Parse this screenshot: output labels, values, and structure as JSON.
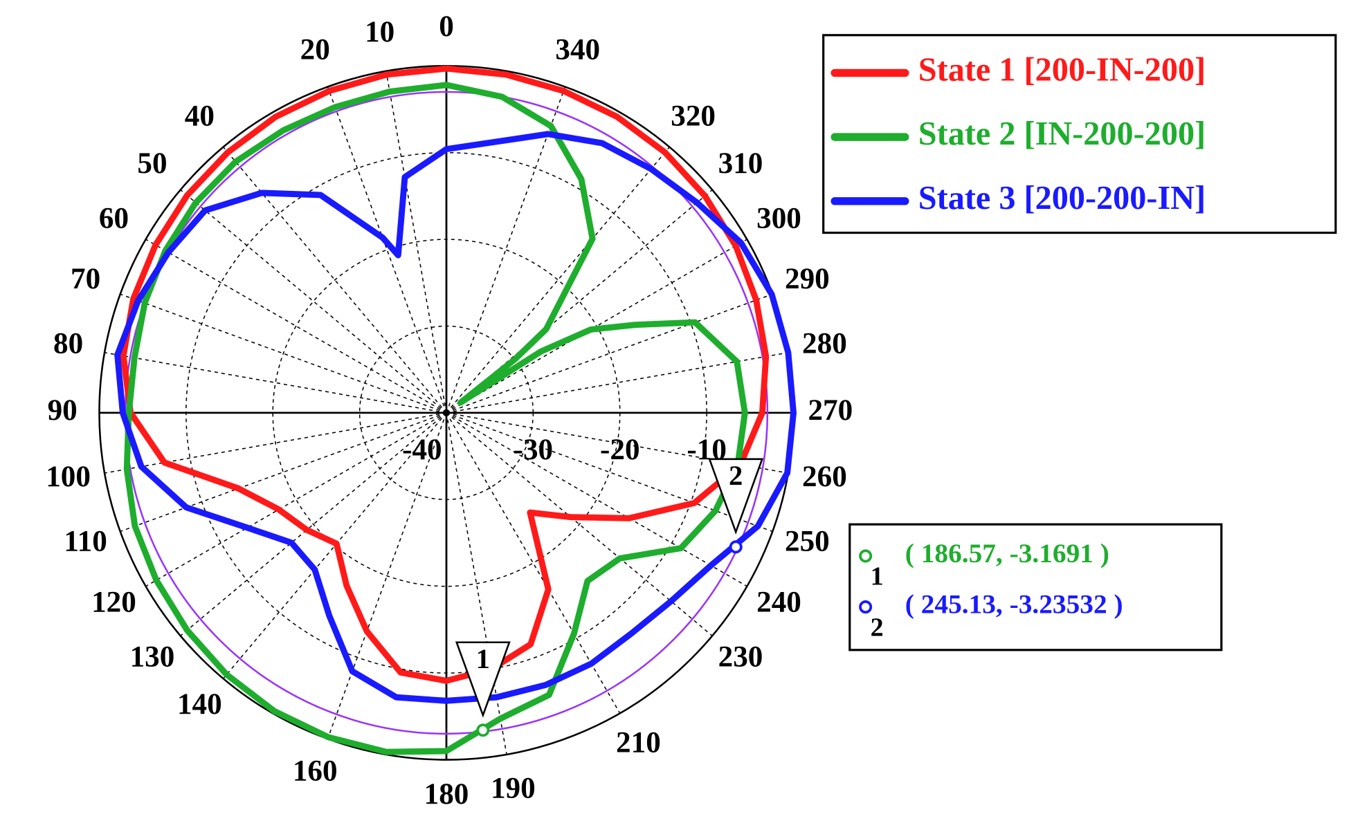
{
  "chart_data": {
    "type": "polar",
    "rlim": [
      -40,
      0
    ],
    "rticks": [
      -40,
      -30,
      -20,
      -10
    ],
    "thetaticks": [
      0,
      10,
      20,
      40,
      50,
      60,
      70,
      80,
      90,
      100,
      110,
      120,
      130,
      140,
      160,
      180,
      190,
      210,
      230,
      240,
      250,
      260,
      270,
      280,
      290,
      300,
      310,
      320,
      340
    ],
    "reference_circle": {
      "r": -3,
      "color": "#9933ff"
    },
    "series": [
      {
        "name": "State 1 [200-IN-200]",
        "color": "#ff1a1a",
        "theta": [
          0,
          10,
          20,
          30,
          40,
          50,
          60,
          70,
          80,
          90,
          100,
          110,
          120,
          130,
          140,
          150,
          160,
          170,
          180,
          190,
          200,
          210,
          220,
          230,
          240,
          250,
          260,
          270,
          280,
          290,
          300,
          310,
          320,
          330,
          340,
          350
        ],
        "r": [
          -0.3,
          -0.4,
          -0.5,
          -0.6,
          -0.8,
          -1,
          -1.3,
          -1.6,
          -2.2,
          -3.6,
          -7,
          -14.5,
          -17.7,
          -19,
          -20.3,
          -17,
          -13.2,
          -9.6,
          -9.1,
          -10,
          -11.6,
          -16.5,
          -25,
          -21.3,
          -15.7,
          -9.6,
          -5.6,
          -3.6,
          -2.6,
          -2,
          -1.5,
          -1.1,
          -0.8,
          -0.6,
          -0.5,
          -0.4
        ]
      },
      {
        "name": "State 2 [IN-200-200]",
        "color": "#1fad2e",
        "theta": [
          0,
          10,
          20,
          30,
          40,
          50,
          60,
          70,
          80,
          90,
          100,
          110,
          120,
          130,
          140,
          150,
          160,
          170,
          180,
          190,
          200,
          210,
          220,
          230,
          240,
          250,
          260,
          270,
          280,
          290,
          295,
          300,
          303,
          306,
          308,
          310,
          320,
          330,
          340,
          350
        ],
        "r": [
          -2.2,
          -2.4,
          -2.5,
          -2.4,
          -2.2,
          -2.3,
          -2.6,
          -3,
          -3.5,
          -3.4,
          -2.6,
          -1.8,
          -1.4,
          -1,
          -0.6,
          -0.3,
          -0.2,
          -0.3,
          -1,
          -4.2,
          -5.4,
          -10.6,
          -14.7,
          -13.9,
          -8.8,
          -7,
          -5.9,
          -5.6,
          -6,
          -9.5,
          -16,
          -20.8,
          -27,
          -38,
          -30,
          -25,
          -13.8,
          -8.9,
          -4.8,
          -3
        ]
      },
      {
        "name": "State 3 [200-200-IN]",
        "color": "#1a1aff",
        "theta": [
          0,
          10,
          17,
          20,
          30,
          40,
          50,
          60,
          70,
          80,
          90,
          100,
          110,
          120,
          130,
          140,
          150,
          160,
          170,
          180,
          190,
          200,
          210,
          220,
          230,
          240,
          250,
          260,
          270,
          280,
          290,
          300,
          310,
          320,
          330,
          340,
          350
        ],
        "r": [
          -9.6,
          -12.4,
          -21,
          -18.5,
          -11,
          -6.9,
          -3.7,
          -3,
          -2.2,
          -1.5,
          -2.7,
          -4.3,
          -8.1,
          -13.5,
          -16.7,
          -16.4,
          -13,
          -8.3,
          -6.7,
          -6.8,
          -6.7,
          -6.6,
          -6.6,
          -6.8,
          -6.2,
          -4.8,
          -1.8,
          -0.1,
          0,
          0,
          -0.1,
          -0.8,
          -2.3,
          -3.3,
          -4.1,
          -5.8,
          -8.3
        ]
      }
    ],
    "markers": [
      {
        "id": "1",
        "theta": 186.57,
        "r": -3.1691,
        "label": "( 186.57, -3.1691 )",
        "color": "#1fad2e"
      },
      {
        "id": "2",
        "theta": 245.13,
        "r": -3.23532,
        "label": "( 245.13, -3.23532 )",
        "color": "#1a1aff"
      }
    ]
  }
}
